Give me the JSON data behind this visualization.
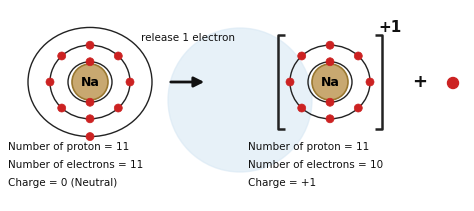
{
  "bg_color": "#ffffff",
  "nucleus_color": "#c8a870",
  "nucleus_edge_color": "#9a7830",
  "orbit_color": "#222222",
  "electron_color": "#cc2222",
  "electron_edge_color": "#cc2222",
  "bracket_color": "#222222",
  "arrow_color": "#111111",
  "text_color": "#111111",
  "watermark_color": "#d8e8f4",
  "release_text": "release 1 electron",
  "charge_text": "+1",
  "plus_text": "+",
  "left_label": "Na",
  "right_label": "Na",
  "left_info": [
    "Number of proton = 11",
    "Number of electrons = 11",
    "Charge = 0 (Neutral)"
  ],
  "right_info": [
    "Number of proton = 11",
    "Number of electrons = 10",
    "Charge = +1"
  ],
  "info_fontsize": 7.5,
  "label_fontsize": 9,
  "release_fontsize": 7.5,
  "charge_fontsize": 11,
  "plus_fontsize": 13
}
